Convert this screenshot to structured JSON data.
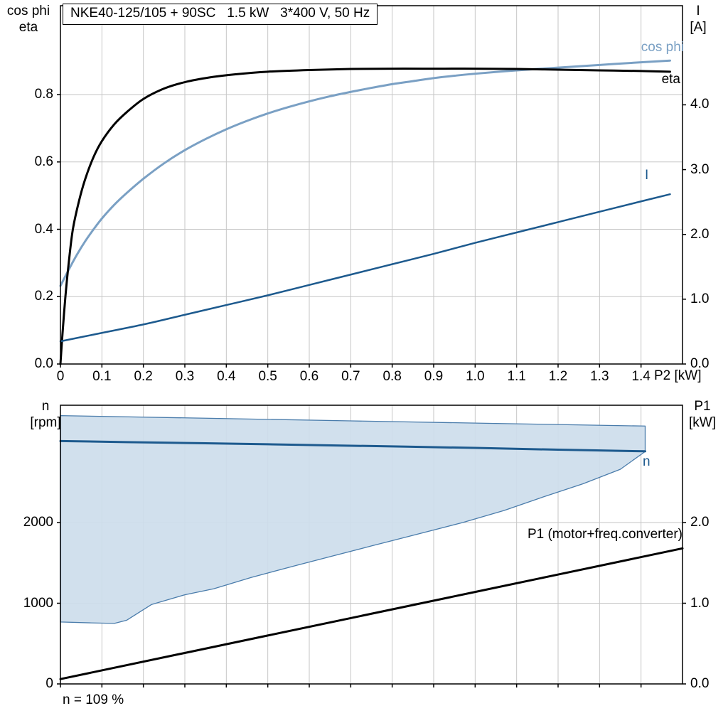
{
  "panel": {
    "speed_note": "n = 109 %"
  },
  "colors": {
    "light_blue": "#7aa0c4",
    "dark_blue": "#1d5a8e",
    "black": "#000000",
    "grid": "#c6c6c6",
    "area_fill": "#cdddeb",
    "area_stroke": "#4a7cab",
    "background": "#ffffff"
  },
  "chart_data": [
    {
      "type": "line",
      "title": "NKE40-125/105 + 90SC   1.5 kW   3*400 V, 50 Hz",
      "x_axis": {
        "unit_label": "P2 [kW]",
        "range": [
          0,
          1.5
        ],
        "tick_labels": [
          "0",
          "0.1",
          "0.2",
          "0.3",
          "0.4",
          "0.5",
          "0.6",
          "0.7",
          "0.8",
          "0.9",
          "1.0",
          "1.1",
          "1.2",
          "1.3",
          "1.4"
        ]
      },
      "left_axis": {
        "label_lines": [
          "cos phi",
          "eta"
        ],
        "range": [
          0,
          1.064
        ],
        "tick_labels": [
          "0.0",
          "0.2",
          "0.4",
          "0.6",
          "0.8"
        ]
      },
      "right_axis": {
        "label_lines": [
          "I",
          "[A]"
        ],
        "range": [
          0,
          5.53
        ],
        "tick_labels": [
          "0.0",
          "1.0",
          "2.0",
          "3.0",
          "4.0"
        ]
      },
      "series": [
        {
          "name": "cos phi",
          "axis": "left",
          "color_key": "light_blue",
          "width": 3,
          "points": [
            [
              0,
              0.232
            ],
            [
              0.02,
              0.28
            ],
            [
              0.04,
              0.325
            ],
            [
              0.06,
              0.365
            ],
            [
              0.08,
              0.4
            ],
            [
              0.1,
              0.432
            ],
            [
              0.13,
              0.473
            ],
            [
              0.16,
              0.508
            ],
            [
              0.2,
              0.55
            ],
            [
              0.25,
              0.596
            ],
            [
              0.3,
              0.635
            ],
            [
              0.35,
              0.668
            ],
            [
              0.4,
              0.697
            ],
            [
              0.45,
              0.722
            ],
            [
              0.5,
              0.744
            ],
            [
              0.55,
              0.763
            ],
            [
              0.6,
              0.78
            ],
            [
              0.65,
              0.795
            ],
            [
              0.7,
              0.808
            ],
            [
              0.75,
              0.82
            ],
            [
              0.8,
              0.831
            ],
            [
              0.85,
              0.84
            ],
            [
              0.9,
              0.849
            ],
            [
              0.95,
              0.856
            ],
            [
              1.0,
              0.862
            ],
            [
              1.1,
              0.872
            ],
            [
              1.2,
              0.88
            ],
            [
              1.3,
              0.888
            ],
            [
              1.4,
              0.896
            ],
            [
              1.47,
              0.901
            ]
          ]
        },
        {
          "name": "eta",
          "axis": "left",
          "color_key": "black",
          "width": 3,
          "points": [
            [
              0,
              0.0
            ],
            [
              0.005,
              0.09
            ],
            [
              0.012,
              0.2
            ],
            [
              0.02,
              0.3
            ],
            [
              0.03,
              0.4
            ],
            [
              0.045,
              0.485
            ],
            [
              0.06,
              0.55
            ],
            [
              0.08,
              0.615
            ],
            [
              0.1,
              0.662
            ],
            [
              0.13,
              0.712
            ],
            [
              0.16,
              0.748
            ],
            [
              0.2,
              0.787
            ],
            [
              0.25,
              0.818
            ],
            [
              0.3,
              0.837
            ],
            [
              0.36,
              0.851
            ],
            [
              0.42,
              0.86
            ],
            [
              0.5,
              0.868
            ],
            [
              0.6,
              0.873
            ],
            [
              0.7,
              0.876
            ],
            [
              0.8,
              0.877
            ],
            [
              0.9,
              0.877
            ],
            [
              1.0,
              0.877
            ],
            [
              1.1,
              0.876
            ],
            [
              1.2,
              0.874
            ],
            [
              1.3,
              0.872
            ],
            [
              1.4,
              0.87
            ],
            [
              1.47,
              0.868
            ]
          ]
        },
        {
          "name": "I",
          "axis": "right",
          "color_key": "dark_blue",
          "width": 2.5,
          "points": [
            [
              0,
              0.35
            ],
            [
              0.1,
              0.48
            ],
            [
              0.2,
              0.61
            ],
            [
              0.3,
              0.76
            ],
            [
              0.4,
              0.91
            ],
            [
              0.5,
              1.06
            ],
            [
              0.6,
              1.22
            ],
            [
              0.7,
              1.38
            ],
            [
              0.8,
              1.54
            ],
            [
              0.9,
              1.7
            ],
            [
              1.0,
              1.87
            ],
            [
              1.1,
              2.03
            ],
            [
              1.2,
              2.19
            ],
            [
              1.3,
              2.35
            ],
            [
              1.4,
              2.51
            ],
            [
              1.47,
              2.62
            ]
          ]
        }
      ]
    },
    {
      "type": "line",
      "note": "n = 109 %",
      "x_axis": {
        "range": [
          0,
          1.5
        ]
      },
      "left_axis": {
        "label_lines": [
          "n",
          "[rpm]"
        ],
        "range": [
          0,
          3454
        ],
        "tick_labels": [
          "0",
          "1000",
          "2000"
        ]
      },
      "right_axis": {
        "label_lines": [
          "P1",
          "[kW]"
        ],
        "range": [
          0,
          3.454
        ],
        "tick_labels": [
          "0.0",
          "1.0",
          "2.0"
        ]
      },
      "envelope": {
        "name": "speed-control-range",
        "upper": [
          [
            0,
            3325
          ],
          [
            0.35,
            3293
          ],
          [
            0.7,
            3260
          ],
          [
            1.05,
            3228
          ],
          [
            1.41,
            3196
          ]
        ],
        "lower": [
          [
            0,
            768
          ],
          [
            0.07,
            757
          ],
          [
            0.13,
            750
          ],
          [
            0.16,
            790
          ],
          [
            0.22,
            985
          ],
          [
            0.3,
            1105
          ],
          [
            0.37,
            1180
          ],
          [
            0.46,
            1320
          ],
          [
            0.57,
            1470
          ],
          [
            0.66,
            1590
          ],
          [
            0.75,
            1710
          ],
          [
            0.86,
            1855
          ],
          [
            0.97,
            2000
          ],
          [
            1.07,
            2150
          ],
          [
            1.16,
            2310
          ],
          [
            1.26,
            2480
          ],
          [
            1.35,
            2660
          ],
          [
            1.41,
            2880
          ]
        ]
      },
      "series": [
        {
          "name": "n",
          "axis": "left",
          "color_key": "dark_blue",
          "width": 3,
          "points": [
            [
              0,
              3010
            ],
            [
              0.25,
              2990
            ],
            [
              0.5,
              2970
            ],
            [
              0.75,
              2948
            ],
            [
              1.0,
              2925
            ],
            [
              1.2,
              2903
            ],
            [
              1.41,
              2883
            ]
          ]
        },
        {
          "name": "P1 (motor+freq.converter)",
          "axis": "right",
          "color_key": "black",
          "width": 3,
          "points": [
            [
              0,
              0.06
            ],
            [
              0.5,
              0.6
            ],
            [
              1.0,
              1.14
            ],
            [
              1.5,
              1.68
            ]
          ]
        }
      ]
    }
  ]
}
